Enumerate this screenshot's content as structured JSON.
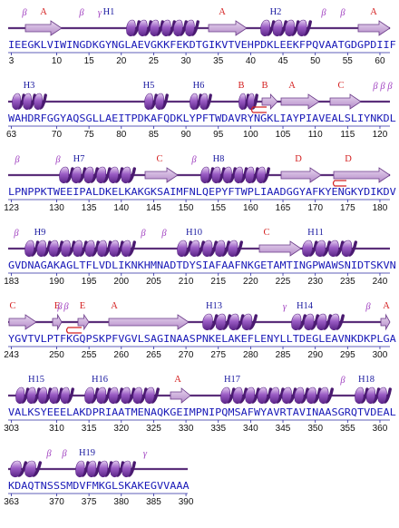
{
  "colors": {
    "backbone": "#5b2f7a",
    "helix_dark": "#7a3aa8",
    "helix_light": "#c89be0",
    "strand_fill": "#c9a8d8",
    "strand_edge": "#6a3a88",
    "sequence": "#1a1ab8",
    "helix_label": "#1a1aa0",
    "strand_label": "#d42020",
    "turn_label": "#a040c0",
    "hairpin": "#d42020",
    "numbers": "#111111",
    "rule": "#2a2aa0"
  },
  "blocks": [
    {
      "sequence": "IEEGKLVIWINGDKGYNGLAEVGKKFEKDTGIKVTVEHPDKLEEKFPQVAATGDGPDIIF",
      "numbers": [
        "3",
        "10",
        "15",
        "20",
        "25",
        "30",
        "35",
        "40",
        "45",
        "50",
        "55",
        "60"
      ],
      "labels": [
        "A",
        "H1",
        "A",
        "H2",
        "A"
      ]
    },
    {
      "sequence": "WAHDRFGGYAQSGLLAEITPDKAFQDKLYPFTWDAVRYNGKLIAYPIAVEALSLIYNKDL",
      "numbers": [
        "63",
        "70",
        "75",
        "80",
        "85",
        "90",
        "95",
        "100",
        "105",
        "110",
        "115",
        "120"
      ],
      "labels": [
        "H3",
        "H5",
        "H6",
        "B",
        "B",
        "A",
        "C"
      ]
    },
    {
      "sequence": "LPNPPKTWEEIPALDKELKAKGKSAIMFNLQEPYFTWPLIAADGGYAFKYENGKYDIKDV",
      "numbers": [
        "123",
        "130",
        "135",
        "140",
        "145",
        "150",
        "155",
        "160",
        "165",
        "170",
        "175",
        "180"
      ],
      "labels": [
        "H7",
        "C",
        "H8",
        "D",
        "D"
      ]
    },
    {
      "sequence": "GVDNAGAKAGLTFLVDLIKNKHMNADTDYSIAFAAFNKGETAMTINGPWAWSNIDTSKVN",
      "numbers": [
        "183",
        "190",
        "195",
        "200",
        "205",
        "210",
        "215",
        "220",
        "225",
        "230",
        "235",
        "240"
      ],
      "labels": [
        "H9",
        "H10",
        "C",
        "H11"
      ]
    },
    {
      "sequence": "YGVTVLPTFKGQPSKPFVGVLSAGINAASPNKELAKEFLENYLLTDEGLEAVNKDKPLGA",
      "numbers": [
        "243",
        "250",
        "255",
        "260",
        "265",
        "270",
        "275",
        "280",
        "285",
        "290",
        "295",
        "300"
      ],
      "labels": [
        "C",
        "E",
        "E",
        "A",
        "H13",
        "H14",
        "A"
      ]
    },
    {
      "sequence": "VALKSYEEELAKDPRIAATMENAQKGEIMPNIPQMSAFWYAVRTAVINAASGRQTVDEAL",
      "numbers": [
        "303",
        "310",
        "315",
        "320",
        "325",
        "330",
        "335",
        "340",
        "345",
        "350",
        "355",
        "360"
      ],
      "labels": [
        "H15",
        "H16",
        "A",
        "H17",
        "H18"
      ]
    },
    {
      "sequence": "KDAQTNSSSMDVFMKGLSKAKEGVVAAA",
      "numbers": [
        "363",
        "370",
        "375",
        "380",
        "385",
        "390"
      ],
      "labels": [
        "H19"
      ]
    }
  ],
  "greek": {
    "beta": "β",
    "gamma": "γ"
  }
}
